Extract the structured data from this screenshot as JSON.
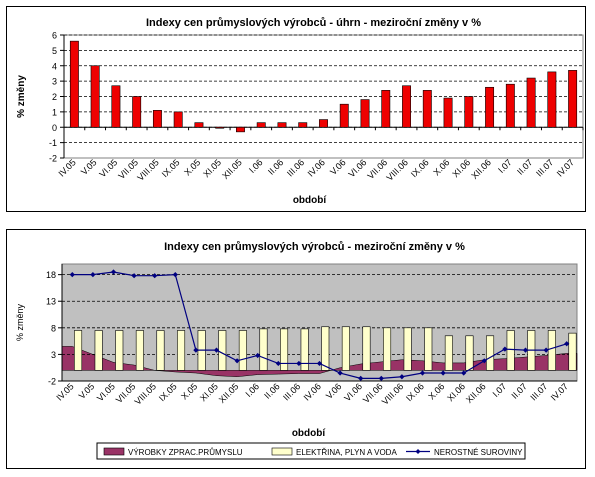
{
  "chart_data": [
    {
      "type": "bar",
      "title": "Indexy cen průmyslových výrobců - úhrn - meziroční změny v %",
      "xlabel": "období",
      "ylabel": "% změny",
      "ylim": [
        -2,
        6
      ],
      "yticks": [
        -2,
        -1,
        0,
        1,
        2,
        3,
        4,
        5,
        6
      ],
      "grid": true,
      "legend": "none",
      "categories": [
        "IV.05",
        "V.05",
        "VI.05",
        "VII.05",
        "VIII.05",
        "IX.05",
        "X.05",
        "XI.05",
        "XII.05",
        "I.06",
        "II.06",
        "III.06",
        "IV.06",
        "V.06",
        "VI.06",
        "VII.06",
        "VIII.06",
        "IX.06",
        "X.06",
        "XI.06",
        "XII.06",
        "I.07",
        "II.07",
        "III.07",
        "IV.07"
      ],
      "values": [
        5.6,
        4.0,
        2.7,
        2.0,
        1.1,
        1.0,
        0.3,
        0.0,
        -0.3,
        0.3,
        0.3,
        0.3,
        0.5,
        1.5,
        1.8,
        2.4,
        2.7,
        2.4,
        1.9,
        2.0,
        2.6,
        2.8,
        3.2,
        3.6,
        3.7
      ],
      "colors": {
        "bar": "#ee0000",
        "plot_bg": "#ffffff",
        "grid": "#000000"
      }
    },
    {
      "type": "bar+area+line",
      "title": "Indexy cen průmyslových výrobců - meziroční změny v %",
      "xlabel": "období",
      "ylabel": "% změny",
      "ylim": [
        -2,
        20
      ],
      "yticks": [
        -2,
        3,
        8,
        13,
        18
      ],
      "grid": true,
      "legend": "bottom",
      "categories": [
        "IV.05",
        "V.05",
        "VI.05",
        "VII.05",
        "VIII.05",
        "IX.05",
        "X.05",
        "XI.05",
        "XII.05",
        "I.06",
        "II.06",
        "III.06",
        "IV.06",
        "V.06",
        "VI.06",
        "VII.06",
        "VIII.06",
        "IX.06",
        "X.06",
        "XI.06",
        "XII.06",
        "I.07",
        "II.07",
        "III.07",
        "IV.07"
      ],
      "series": [
        {
          "name": "VÝROBKY ZPRAC.PRŮMYSLU",
          "type": "area",
          "color": "#993366",
          "values": [
            4.5,
            3.0,
            1.5,
            1.0,
            0.0,
            -0.3,
            -0.5,
            -1.0,
            -1.2,
            -0.8,
            -0.7,
            -0.6,
            -0.6,
            0.5,
            1.2,
            1.6,
            2.0,
            1.8,
            1.4,
            1.4,
            2.0,
            2.2,
            2.5,
            2.8,
            3.2
          ]
        },
        {
          "name": "ELEKTŘINA, PLYN A VODA",
          "type": "bar",
          "color": "#ffffcc",
          "values": [
            7.5,
            7.5,
            7.5,
            7.5,
            7.5,
            7.5,
            7.5,
            7.5,
            7.5,
            7.8,
            7.8,
            7.8,
            8.2,
            8.2,
            8.2,
            8.0,
            8.0,
            8.0,
            6.5,
            6.5,
            6.5,
            7.5,
            7.5,
            7.5,
            7.0
          ]
        },
        {
          "name": "NEROSTNÉ SUROVINY",
          "type": "line",
          "color": "#000080",
          "values": [
            18.0,
            18.0,
            18.5,
            17.8,
            17.8,
            18.0,
            3.8,
            3.8,
            1.8,
            2.8,
            1.3,
            1.3,
            1.3,
            -0.5,
            -1.5,
            -1.5,
            -1.2,
            -0.5,
            -0.5,
            -0.5,
            1.8,
            4.0,
            3.8,
            3.8,
            5.0
          ]
        }
      ],
      "colors": {
        "plot_bg": "#c0c0c0",
        "grid": "#000000"
      }
    }
  ]
}
